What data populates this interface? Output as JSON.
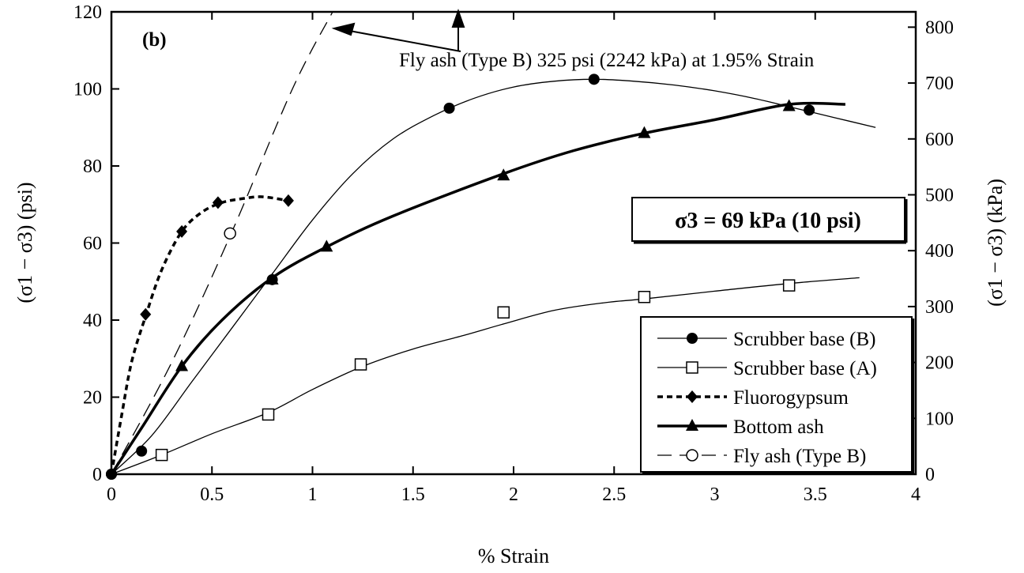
{
  "chart_data": {
    "type": "line",
    "panel_label": "(b)",
    "xlabel": "% Strain",
    "ylabel": "(σ1 − σ3) (psi)",
    "ylabel_right": "(σ1 − σ3)    (kPa)",
    "xlim": [
      0,
      4
    ],
    "ylim": [
      0,
      120
    ],
    "ylim_right": [
      0,
      827.4
    ],
    "x_ticks": [
      "0",
      "0.5",
      "1",
      "1.5",
      "2",
      "2.5",
      "3",
      "3.5",
      "4"
    ],
    "y_ticks": [
      "0",
      "20",
      "40",
      "60",
      "80",
      "100",
      "120"
    ],
    "y_ticks_right": [
      "0",
      "100",
      "200",
      "300",
      "400",
      "500",
      "600",
      "700",
      "800"
    ],
    "confining_label": "σ3 = 69 kPa (10 psi)",
    "annotation": "Fly ash (Type B) 325 psi (2242 kPa) at 1.95% Strain",
    "legend_position": "lower-right",
    "grid": false,
    "series": [
      {
        "name": "Scrubber base (B)",
        "marker": "filled-circle",
        "dash": "solid",
        "weight": "thin",
        "curve": [
          [
            0,
            0
          ],
          [
            0.2,
            10
          ],
          [
            0.4,
            24
          ],
          [
            0.6,
            38
          ],
          [
            0.8,
            52
          ],
          [
            1.0,
            66
          ],
          [
            1.2,
            78
          ],
          [
            1.4,
            87
          ],
          [
            1.6,
            93
          ],
          [
            1.8,
            97.5
          ],
          [
            2.0,
            100.5
          ],
          [
            2.2,
            102
          ],
          [
            2.4,
            102.5
          ],
          [
            2.6,
            102
          ],
          [
            2.8,
            101
          ],
          [
            3.0,
            99.5
          ],
          [
            3.2,
            97.5
          ],
          [
            3.4,
            95
          ],
          [
            3.6,
            92.5
          ],
          [
            3.8,
            90
          ]
        ],
        "points": [
          [
            0,
            0
          ],
          [
            0.15,
            6
          ],
          [
            0.8,
            50.5
          ],
          [
            1.68,
            95
          ],
          [
            2.4,
            102.5
          ],
          [
            3.47,
            94.5
          ]
        ]
      },
      {
        "name": "Scrubber base (A)",
        "marker": "open-square",
        "dash": "solid",
        "weight": "thin",
        "curve": [
          [
            0,
            0
          ],
          [
            0.25,
            5
          ],
          [
            0.5,
            10.5
          ],
          [
            0.78,
            16
          ],
          [
            1.0,
            22
          ],
          [
            1.25,
            28
          ],
          [
            1.5,
            32.5
          ],
          [
            1.75,
            36
          ],
          [
            1.95,
            39
          ],
          [
            2.2,
            42.5
          ],
          [
            2.45,
            44.5
          ],
          [
            2.65,
            45.5
          ],
          [
            3.0,
            47.5
          ],
          [
            3.37,
            49.5
          ],
          [
            3.72,
            51
          ]
        ],
        "points": [
          [
            0.25,
            5
          ],
          [
            0.78,
            15.5
          ],
          [
            1.24,
            28.5
          ],
          [
            1.95,
            42
          ],
          [
            2.65,
            46
          ],
          [
            3.37,
            49
          ]
        ]
      },
      {
        "name": "Fluorogypsum",
        "marker": "filled-diamond",
        "dash": "dotted",
        "weight": "thick",
        "curve": [
          [
            0,
            0
          ],
          [
            0.05,
            15
          ],
          [
            0.1,
            29
          ],
          [
            0.17,
            41
          ],
          [
            0.25,
            53
          ],
          [
            0.35,
            63
          ],
          [
            0.45,
            68
          ],
          [
            0.55,
            70.5
          ],
          [
            0.65,
            71.5
          ],
          [
            0.75,
            72
          ],
          [
            0.88,
            71
          ]
        ],
        "points": [
          [
            0.17,
            41.5
          ],
          [
            0.35,
            63
          ],
          [
            0.53,
            70.5
          ],
          [
            0.88,
            71
          ]
        ]
      },
      {
        "name": "Bottom ash",
        "marker": "filled-triangle",
        "dash": "solid",
        "weight": "thick",
        "curve": [
          [
            0,
            0
          ],
          [
            0.15,
            12
          ],
          [
            0.35,
            28
          ],
          [
            0.55,
            40
          ],
          [
            0.8,
            51
          ],
          [
            1.07,
            59
          ],
          [
            1.4,
            67
          ],
          [
            1.95,
            78
          ],
          [
            2.3,
            84
          ],
          [
            2.65,
            88.5
          ],
          [
            3.0,
            92
          ],
          [
            3.37,
            96
          ],
          [
            3.65,
            96
          ]
        ],
        "points": [
          [
            0.35,
            28
          ],
          [
            0.8,
            50.5
          ],
          [
            1.07,
            59
          ],
          [
            1.95,
            77.5
          ],
          [
            2.65,
            88.5
          ],
          [
            3.37,
            95.5
          ]
        ]
      },
      {
        "name": "Fly ash (Type B)",
        "marker": "open-circle",
        "dash": "dashed",
        "weight": "thin",
        "curve": [
          [
            0,
            0
          ],
          [
            0.3,
            29
          ],
          [
            0.6,
            63
          ],
          [
            0.9,
            100
          ],
          [
            1.1,
            120
          ]
        ],
        "points": [
          [
            0.59,
            62.5
          ]
        ]
      }
    ]
  }
}
